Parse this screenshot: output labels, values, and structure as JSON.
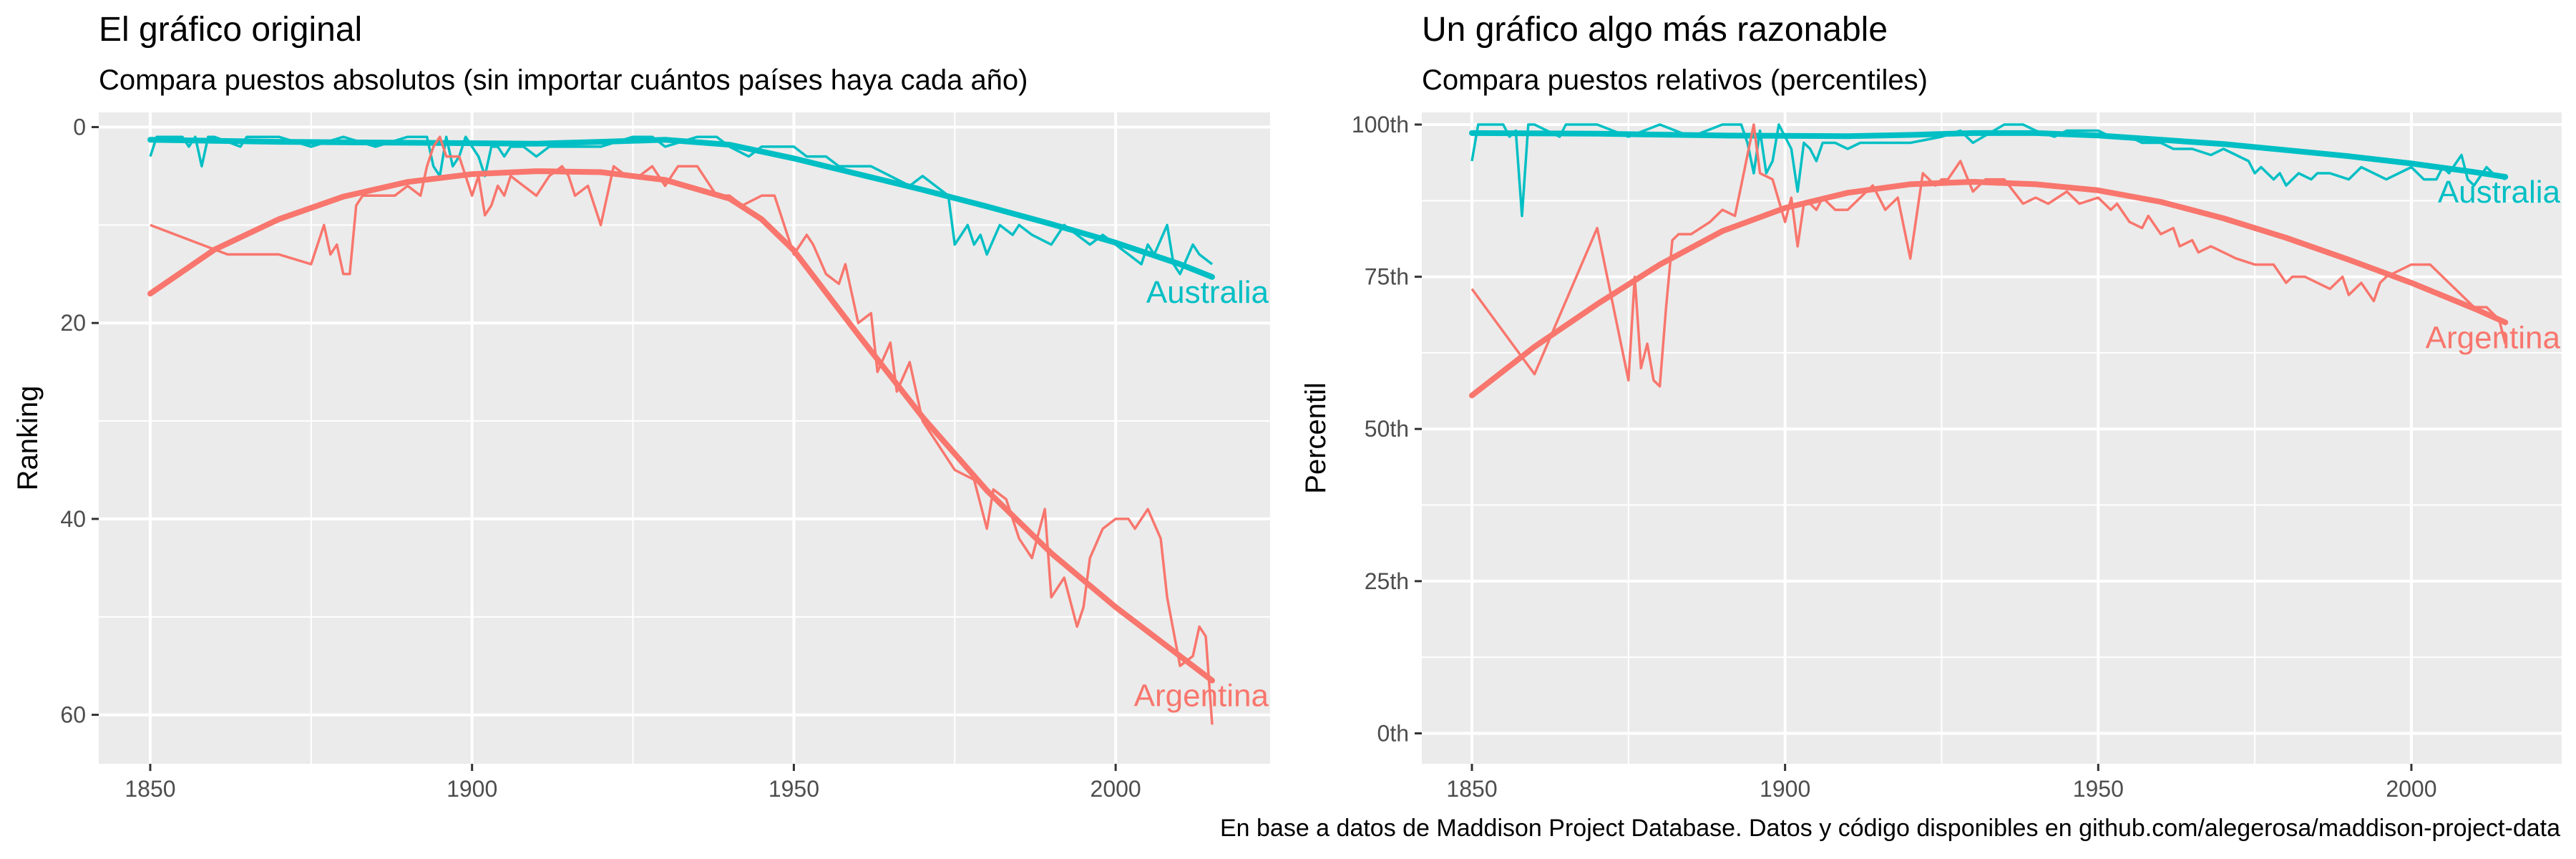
{
  "caption": "En base a datos de Maddison Project Database. Datos y código disponibles en github.com/alegerosa/maddison-project-data",
  "chart_data": [
    {
      "type": "line",
      "title": "El gráfico original",
      "subtitle": "Compara puestos absolutos (sin importar cuántos países haya cada año)",
      "xlabel": "",
      "ylabel": "Ranking",
      "xlim": [
        1842,
        2024
      ],
      "ylim": [
        -1.5,
        65
      ],
      "y_reversed": true,
      "x_ticks": [
        1850,
        1900,
        1950,
        2000
      ],
      "x_tick_labels": [
        "1850",
        "1900",
        "1950",
        "2000"
      ],
      "y_ticks": [
        0,
        20,
        40,
        60
      ],
      "y_tick_labels": [
        "0",
        "20",
        "40",
        "60"
      ],
      "grid": true,
      "legend": "none",
      "series": [
        {
          "name": "Australia",
          "color": "#00BFC4",
          "x": [
            1850,
            1851,
            1855,
            1856,
            1857,
            1858,
            1859,
            1860,
            1864,
            1865,
            1866,
            1870,
            1875,
            1880,
            1885,
            1890,
            1893,
            1894,
            1895,
            1896,
            1897,
            1898,
            1899,
            1900,
            1901,
            1902,
            1903,
            1904,
            1905,
            1906,
            1908,
            1910,
            1912,
            1915,
            1918,
            1920,
            1925,
            1928,
            1930,
            1935,
            1938,
            1940,
            1943,
            1945,
            1948,
            1950,
            1952,
            1955,
            1957,
            1960,
            1962,
            1965,
            1968,
            1970,
            1972,
            1974,
            1975,
            1976,
            1977,
            1978,
            1979,
            1980,
            1982,
            1984,
            1985,
            1987,
            1990,
            1992,
            1994,
            1996,
            1998,
            2000,
            2002,
            2004,
            2005,
            2006,
            2008,
            2009,
            2010,
            2012,
            2013,
            2015
          ],
          "y": [
            3,
            1,
            1,
            2,
            1,
            4,
            1,
            1,
            2,
            1,
            1,
            1,
            2,
            1,
            2,
            1,
            1,
            4,
            5,
            1,
            4,
            3,
            1,
            2,
            3,
            5,
            2,
            2,
            3,
            2,
            2,
            3,
            2,
            2,
            2,
            2,
            1,
            1,
            2,
            1,
            1,
            2,
            3,
            2,
            2,
            2,
            3,
            3,
            4,
            4,
            4,
            5,
            6,
            5,
            6,
            7,
            12,
            11,
            10,
            12,
            11,
            13,
            10,
            11,
            10,
            11,
            12,
            10,
            11,
            12,
            11,
            12,
            13,
            14,
            12,
            13,
            10,
            14,
            15,
            12,
            13,
            14
          ],
          "end_label": "Australia",
          "smooth": {
            "x": [
              1850,
              1870,
              1890,
              1910,
              1920,
              1930,
              1940,
              1950,
              1960,
              1970,
              1980,
              1990,
              2000,
              2010,
              2015
            ],
            "y": [
              1.3,
              1.5,
              1.6,
              1.7,
              1.5,
              1.3,
              1.8,
              3.2,
              4.8,
              6.4,
              8.1,
              9.9,
              11.8,
              14.0,
              15.3
            ]
          }
        },
        {
          "name": "Argentina",
          "color": "#F8766D",
          "x": [
            1850,
            1862,
            1870,
            1875,
            1876,
            1877,
            1878,
            1879,
            1880,
            1881,
            1882,
            1883,
            1885,
            1888,
            1890,
            1892,
            1893,
            1894,
            1895,
            1896,
            1898,
            1900,
            1901,
            1902,
            1903,
            1904,
            1905,
            1906,
            1908,
            1910,
            1912,
            1914,
            1915,
            1916,
            1918,
            1920,
            1922,
            1924,
            1925,
            1926,
            1928,
            1930,
            1932,
            1935,
            1938,
            1940,
            1942,
            1945,
            1947,
            1950,
            1952,
            1953,
            1955,
            1957,
            1958,
            1960,
            1962,
            1963,
            1965,
            1966,
            1968,
            1970,
            1972,
            1975,
            1978,
            1980,
            1981,
            1983,
            1985,
            1987,
            1989,
            1990,
            1992,
            1994,
            1995,
            1996,
            1998,
            2000,
            2002,
            2003,
            2005,
            2007,
            2008,
            2010,
            2012,
            2013,
            2014,
            2015
          ],
          "y": [
            10,
            13,
            13,
            14,
            12,
            10,
            13,
            12,
            15,
            15,
            8,
            7,
            7,
            7,
            6,
            7,
            4,
            2,
            1,
            3,
            3,
            7,
            5,
            9,
            8,
            6,
            7,
            5,
            6,
            7,
            5,
            4,
            5,
            7,
            6,
            10,
            4,
            5,
            5,
            5,
            4,
            6,
            4,
            4,
            7,
            7,
            8,
            7,
            7,
            13,
            11,
            12,
            15,
            16,
            14,
            20,
            19,
            25,
            22,
            27,
            24,
            30,
            32,
            35,
            36,
            41,
            37,
            38,
            42,
            44,
            39,
            48,
            46,
            51,
            49,
            44,
            41,
            40,
            40,
            41,
            39,
            42,
            48,
            55,
            54,
            51,
            52,
            61
          ],
          "end_label": "Argentina",
          "smooth": {
            "x": [
              1850,
              1860,
              1870,
              1880,
              1890,
              1900,
              1910,
              1920,
              1930,
              1940,
              1945,
              1950,
              1960,
              1970,
              1980,
              1990,
              2000,
              2010,
              2015
            ],
            "y": [
              17.0,
              12.5,
              9.4,
              7.1,
              5.6,
              4.8,
              4.5,
              4.6,
              5.4,
              7.3,
              9.4,
              12.6,
              21.2,
              29.6,
              37.1,
              43.5,
              49.0,
              54.0,
              56.5
            ]
          }
        }
      ]
    },
    {
      "type": "line",
      "title": "Un gráfico algo más razonable",
      "subtitle": "Compara puestos relativos (percentiles)",
      "xlabel": "",
      "ylabel": "Percentil",
      "xlim": [
        1842,
        2024
      ],
      "ylim": [
        -5,
        102
      ],
      "y_reversed": false,
      "x_ticks": [
        1850,
        1900,
        1950,
        2000
      ],
      "x_tick_labels": [
        "1850",
        "1900",
        "1950",
        "2000"
      ],
      "y_ticks": [
        0,
        25,
        50,
        75,
        100
      ],
      "y_tick_labels": [
        "0th",
        "25th",
        "50th",
        "75th",
        "100th"
      ],
      "grid": true,
      "legend": "none",
      "series": [
        {
          "name": "Australia",
          "color": "#00BFC4",
          "x": [
            1850,
            1851,
            1855,
            1856,
            1857,
            1858,
            1859,
            1860,
            1864,
            1865,
            1866,
            1870,
            1875,
            1880,
            1885,
            1890,
            1893,
            1894,
            1895,
            1896,
            1897,
            1898,
            1899,
            1900,
            1901,
            1902,
            1903,
            1904,
            1905,
            1906,
            1908,
            1910,
            1912,
            1915,
            1918,
            1920,
            1925,
            1928,
            1930,
            1935,
            1938,
            1940,
            1943,
            1945,
            1948,
            1950,
            1952,
            1955,
            1957,
            1960,
            1962,
            1965,
            1968,
            1970,
            1972,
            1974,
            1975,
            1976,
            1977,
            1978,
            1979,
            1980,
            1982,
            1984,
            1985,
            1987,
            1990,
            1992,
            1994,
            1996,
            1998,
            2000,
            2002,
            2004,
            2005,
            2006,
            2008,
            2009,
            2010,
            2012,
            2013,
            2015
          ],
          "y": [
            94,
            100,
            100,
            98,
            99,
            85,
            100,
            100,
            98,
            100,
            100,
            100,
            98,
            100,
            98,
            100,
            100,
            97,
            92,
            99,
            92,
            94,
            100,
            98,
            96,
            89,
            97,
            96,
            94,
            97,
            97,
            96,
            97,
            97,
            97,
            97,
            98,
            99,
            97,
            100,
            100,
            99,
            98,
            99,
            99,
            99,
            98,
            98,
            97,
            97,
            96,
            96,
            95,
            96,
            95,
            94,
            92,
            93,
            92,
            91,
            92,
            90,
            92,
            91,
            92,
            92,
            91,
            93,
            92,
            91,
            92,
            93,
            91,
            91,
            93,
            92,
            95,
            91,
            90,
            93,
            92,
            91
          ],
          "end_label": "Australia",
          "smooth": {
            "x": [
              1850,
              1870,
              1890,
              1910,
              1920,
              1930,
              1940,
              1950,
              1960,
              1970,
              1980,
              1990,
              2000,
              2010,
              2015
            ],
            "y": [
              98.6,
              98.5,
              98.2,
              98.1,
              98.3,
              98.6,
              98.6,
              98.2,
              97.5,
              96.8,
              95.8,
              94.8,
              93.6,
              92.2,
              91.4
            ]
          }
        },
        {
          "name": "Argentina",
          "color": "#F8766D",
          "x": [
            1850,
            1860,
            1870,
            1875,
            1876,
            1877,
            1878,
            1879,
            1880,
            1881,
            1882,
            1883,
            1885,
            1888,
            1890,
            1892,
            1893,
            1894,
            1895,
            1896,
            1898,
            1900,
            1901,
            1902,
            1903,
            1904,
            1905,
            1906,
            1908,
            1910,
            1912,
            1914,
            1915,
            1916,
            1918,
            1920,
            1922,
            1924,
            1925,
            1926,
            1928,
            1930,
            1932,
            1935,
            1938,
            1940,
            1942,
            1945,
            1947,
            1950,
            1952,
            1953,
            1955,
            1957,
            1958,
            1960,
            1962,
            1963,
            1965,
            1966,
            1968,
            1970,
            1972,
            1975,
            1978,
            1980,
            1981,
            1983,
            1985,
            1987,
            1989,
            1990,
            1992,
            1994,
            1995,
            1996,
            1998,
            2000,
            2002,
            2003,
            2005,
            2007,
            2008,
            2010,
            2012,
            2013,
            2014,
            2015
          ],
          "y": [
            73,
            59,
            83,
            58,
            75,
            60,
            64,
            58,
            57,
            70,
            81,
            82,
            82,
            84,
            86,
            85,
            90,
            95,
            100,
            92,
            91,
            84,
            88,
            80,
            87,
            87,
            86,
            88,
            86,
            86,
            88,
            90,
            88,
            86,
            88,
            78,
            92,
            90,
            91,
            91,
            94,
            89,
            91,
            91,
            87,
            88,
            87,
            89,
            87,
            88,
            86,
            87,
            84,
            83,
            85,
            82,
            83,
            80,
            81,
            79,
            80,
            79,
            78,
            77,
            77,
            74,
            75,
            75,
            74,
            73,
            75,
            72,
            74,
            71,
            74,
            75,
            76,
            77,
            77,
            77,
            75,
            73,
            72,
            70,
            70,
            69,
            68,
            64
          ],
          "end_label": "Argentina",
          "smooth": {
            "x": [
              1850,
              1860,
              1870,
              1880,
              1890,
              1900,
              1910,
              1920,
              1930,
              1940,
              1950,
              1960,
              1970,
              1980,
              1990,
              2000,
              2010,
              2015
            ],
            "y": [
              55.5,
              63.5,
              70.5,
              77.0,
              82.5,
              86.3,
              88.8,
              90.2,
              90.6,
              90.2,
              89.2,
              87.3,
              84.6,
              81.4,
              77.8,
              74.0,
              69.8,
              67.5
            ]
          }
        }
      ]
    }
  ]
}
